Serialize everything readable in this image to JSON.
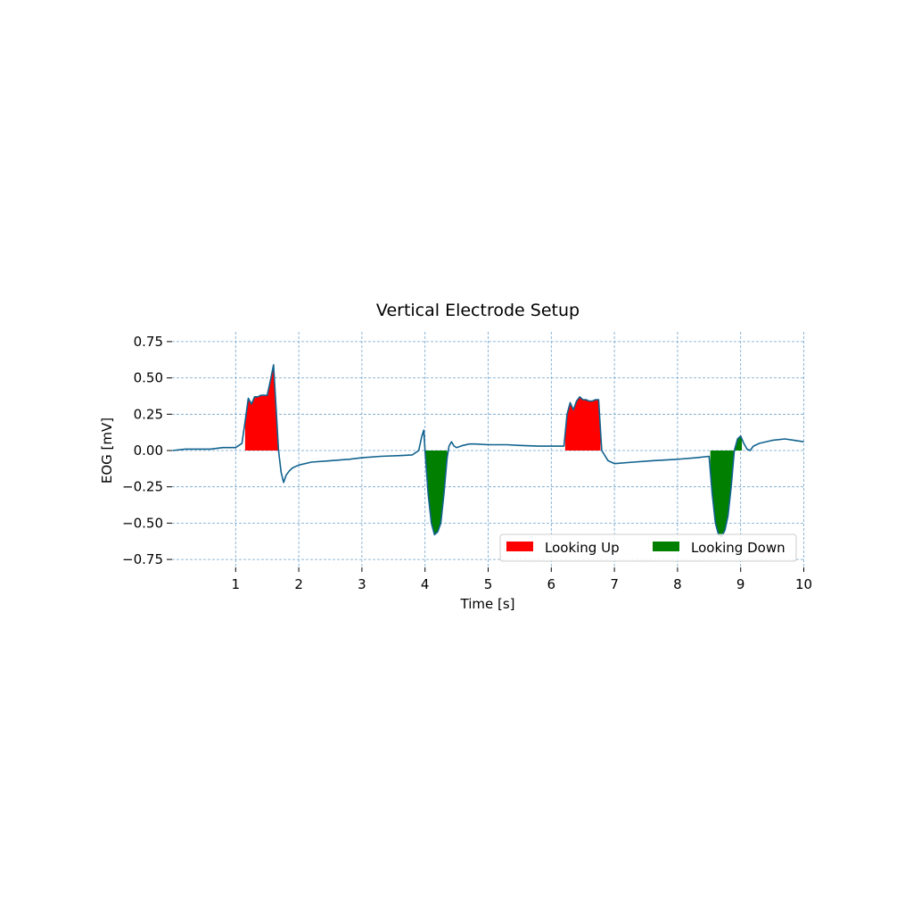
{
  "chart_data": {
    "type": "line",
    "title": "Vertical Electrode Setup",
    "xlabel": "Time [s]",
    "ylabel": "EOG [mV]",
    "xlim": [
      0,
      10
    ],
    "ylim": [
      -0.8,
      0.8
    ],
    "x_ticks": [
      1,
      2,
      3,
      4,
      5,
      6,
      7,
      8,
      9,
      10
    ],
    "x_tick_labels": [
      "1",
      "2",
      "3",
      "4",
      "5",
      "6",
      "7",
      "8",
      "9",
      "10"
    ],
    "y_ticks": [
      0.75,
      0.5,
      0.25,
      0.0,
      -0.25,
      -0.5,
      -0.75
    ],
    "y_tick_labels": [
      "0.75",
      "0.50",
      "0.25",
      "0.00",
      "−0.25",
      "−0.50",
      "−0.75"
    ],
    "grid": true,
    "legend_position": "lower-right",
    "line_color": "#10628f",
    "series": [
      {
        "x": [
          0.0,
          0.2,
          0.4,
          0.6,
          0.8,
          1.0,
          1.1,
          1.15,
          1.2,
          1.25,
          1.3,
          1.35,
          1.4,
          1.45,
          1.5,
          1.55,
          1.6,
          1.64,
          1.68,
          1.72,
          1.76,
          1.8,
          1.85,
          1.9,
          2.0,
          2.2,
          2.5,
          2.8,
          3.0,
          3.3,
          3.6,
          3.8,
          3.9,
          3.95,
          3.98,
          4.0,
          4.05,
          4.1,
          4.15,
          4.2,
          4.25,
          4.3,
          4.35,
          4.38,
          4.42,
          4.46,
          4.5,
          4.6,
          4.7,
          4.8,
          5.0,
          5.2,
          5.3,
          5.5,
          5.8,
          6.0,
          6.2,
          6.25,
          6.3,
          6.35,
          6.4,
          6.45,
          6.5,
          6.55,
          6.6,
          6.65,
          6.7,
          6.75,
          6.8,
          6.9,
          7.0,
          7.3,
          7.6,
          8.0,
          8.3,
          8.5,
          8.55,
          8.6,
          8.65,
          8.7,
          8.75,
          8.8,
          8.85,
          8.9,
          8.95,
          9.0,
          9.05,
          9.1,
          9.15,
          9.2,
          9.3,
          9.5,
          9.7,
          9.85,
          10.0
        ],
        "y": [
          0.0,
          0.01,
          0.01,
          0.01,
          0.02,
          0.02,
          0.05,
          0.2,
          0.36,
          0.32,
          0.37,
          0.37,
          0.38,
          0.38,
          0.38,
          0.48,
          0.59,
          0.3,
          0.0,
          -0.15,
          -0.22,
          -0.17,
          -0.14,
          -0.12,
          -0.1,
          -0.08,
          -0.07,
          -0.06,
          -0.05,
          -0.04,
          -0.035,
          -0.03,
          0.0,
          0.1,
          0.14,
          0.0,
          -0.3,
          -0.5,
          -0.58,
          -0.56,
          -0.5,
          -0.3,
          -0.05,
          0.03,
          0.06,
          0.03,
          0.02,
          0.035,
          0.045,
          0.045,
          0.04,
          0.04,
          0.04,
          0.035,
          0.03,
          0.03,
          0.03,
          0.25,
          0.33,
          0.28,
          0.34,
          0.37,
          0.35,
          0.35,
          0.34,
          0.34,
          0.35,
          0.35,
          0.0,
          -0.07,
          -0.09,
          -0.08,
          -0.07,
          -0.06,
          -0.05,
          -0.04,
          -0.3,
          -0.5,
          -0.58,
          -0.59,
          -0.55,
          -0.45,
          -0.25,
          0.0,
          0.08,
          0.1,
          0.05,
          0.01,
          0.0,
          0.03,
          0.05,
          0.07,
          0.08,
          0.07,
          0.06
        ]
      }
    ],
    "highlights": [
      {
        "name": "Looking Up",
        "color": "#ff0000",
        "ranges": [
          [
            1.15,
            1.68
          ],
          [
            6.22,
            6.78
          ]
        ]
      },
      {
        "name": "Looking Down",
        "color": "#007f00",
        "ranges": [
          [
            4.0,
            4.35
          ],
          [
            8.52,
            9.02
          ]
        ]
      }
    ]
  }
}
